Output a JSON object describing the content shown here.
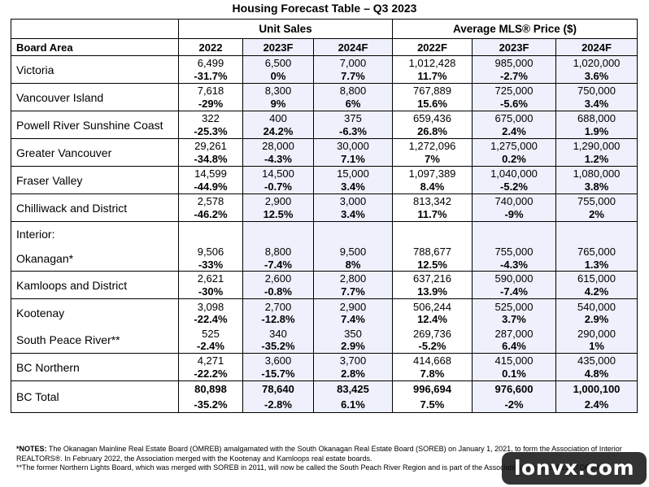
{
  "title": "Housing Forecast Table – Q3 2023",
  "groups": {
    "unit_sales": "Unit Sales",
    "avg_price": "Average MLS® Price ($)"
  },
  "columns": {
    "board_area": "Board Area",
    "us_2022": "2022",
    "us_2023f": "2023F",
    "us_2024f": "2024F",
    "pr_2022f": "2022F",
    "pr_2023f": "2023F",
    "pr_2024f": "2024F"
  },
  "rows": [
    {
      "area": "Victoria",
      "cells": [
        [
          "6,499",
          "-31.7%"
        ],
        [
          "6,500",
          "0%"
        ],
        [
          "7,000",
          "7.7%"
        ],
        [
          "1,012,428",
          "11.7%"
        ],
        [
          "985,000",
          "-2.7%"
        ],
        [
          "1,020,000",
          "3.6%"
        ]
      ]
    },
    {
      "area": "Vancouver Island",
      "cells": [
        [
          "7,618",
          "-29%"
        ],
        [
          "8,300",
          "9%"
        ],
        [
          "8,800",
          "6%"
        ],
        [
          "767,889",
          "15.6%"
        ],
        [
          "725,000",
          "-5.6%"
        ],
        [
          "750,000",
          "3.4%"
        ]
      ]
    },
    {
      "area": "Powell River Sunshine Coast",
      "cells": [
        [
          "322",
          "-25.3%"
        ],
        [
          "400",
          "24.2%"
        ],
        [
          "375",
          "-6.3%"
        ],
        [
          "659,436",
          "26.8%"
        ],
        [
          "675,000",
          "2.4%"
        ],
        [
          "688,000",
          "1.9%"
        ]
      ]
    },
    {
      "area": "Greater Vancouver",
      "cells": [
        [
          "29,261",
          "-34.8%"
        ],
        [
          "28,000",
          "-4.3%"
        ],
        [
          "30,000",
          "7.1%"
        ],
        [
          "1,272,096",
          "7%"
        ],
        [
          "1,275,000",
          "0.2%"
        ],
        [
          "1,290,000",
          "1.2%"
        ]
      ]
    },
    {
      "area": "Fraser Valley",
      "cells": [
        [
          "14,599",
          "-44.9%"
        ],
        [
          "14,500",
          "-0.7%"
        ],
        [
          "15,000",
          "3.4%"
        ],
        [
          "1,097,389",
          "8.4%"
        ],
        [
          "1,040,000",
          "-5.2%"
        ],
        [
          "1,080,000",
          "3.8%"
        ]
      ]
    },
    {
      "area": "Chilliwack and District",
      "cells": [
        [
          "2,578",
          "-46.2%"
        ],
        [
          "2,900",
          "12.5%"
        ],
        [
          "3,000",
          "3.4%"
        ],
        [
          "813,342",
          "11.7%"
        ],
        [
          "740,000",
          "-9%"
        ],
        [
          "755,000",
          "2%"
        ]
      ]
    }
  ],
  "interior_label": "Interior:",
  "okanagan": {
    "area": "Okanagan*",
    "cells": [
      [
        "9,506",
        "-33%"
      ],
      [
        "8,800",
        "-7.4%"
      ],
      [
        "9,500",
        "8%"
      ],
      [
        "788,677",
        "12.5%"
      ],
      [
        "755,000",
        "-4.3%"
      ],
      [
        "765,000",
        "1.3%"
      ]
    ]
  },
  "kamloops": {
    "area": "Kamloops and District",
    "cells": [
      [
        "2,621",
        "-30%"
      ],
      [
        "2,600",
        "-0.8%"
      ],
      [
        "2,800",
        "7.7%"
      ],
      [
        "637,216",
        "13.9%"
      ],
      [
        "590,000",
        "-7.4%"
      ],
      [
        "615,000",
        "4.2%"
      ]
    ]
  },
  "kootenay": {
    "area": "Kootenay",
    "cells": [
      [
        "3,098",
        "-22.4%"
      ],
      [
        "2,700",
        "-12.8%"
      ],
      [
        "2,900",
        "7.4%"
      ],
      [
        "506,244",
        "12.4%"
      ],
      [
        "525,000",
        "3.7%"
      ],
      [
        "540,000",
        "2.9%"
      ]
    ]
  },
  "south_peace": {
    "area": "South Peace River**",
    "cells": [
      [
        "525",
        "-2.4%"
      ],
      [
        "340",
        "-35.2%"
      ],
      [
        "350",
        "2.9%"
      ],
      [
        "269,736",
        "-5.2%"
      ],
      [
        "287,000",
        "6.4%"
      ],
      [
        "290,000",
        "1%"
      ]
    ]
  },
  "bc_northern": {
    "area": "BC Northern",
    "cells": [
      [
        "4,271",
        "-22.2%"
      ],
      [
        "3,600",
        "-15.7%"
      ],
      [
        "3,700",
        "2.8%"
      ],
      [
        "414,668",
        "7.8%"
      ],
      [
        "415,000",
        "0.1%"
      ],
      [
        "435,000",
        "4.8%"
      ]
    ]
  },
  "bc_total": {
    "area": "BC Total",
    "cells": [
      [
        "80,898",
        "-35.2%"
      ],
      [
        "78,640",
        "-2.8%"
      ],
      [
        "83,425",
        "6.1%"
      ],
      [
        "996,694",
        "7.5%"
      ],
      [
        "976,600",
        "-2%"
      ],
      [
        "1,000,100",
        "2.4%"
      ]
    ]
  },
  "notes": {
    "label": "*NOTES:",
    "line1": " The Okanagan Mainline Real Estate Board (OMREB) amalgamated with the South Okanagan Real Estate Board (SOREB) on January 1, 2021, to form the Association of Interior REALTORS®. In February 2022, the Association merged with the Kootenay and Kamloops real estate boards.",
    "line2": "**The former Northern Lights Board, which was merged with SOREB in 2011, will now be called the South Peach River Region and is part of the Association of Interior REALTORS®."
  },
  "watermark": "lonvx.com"
}
